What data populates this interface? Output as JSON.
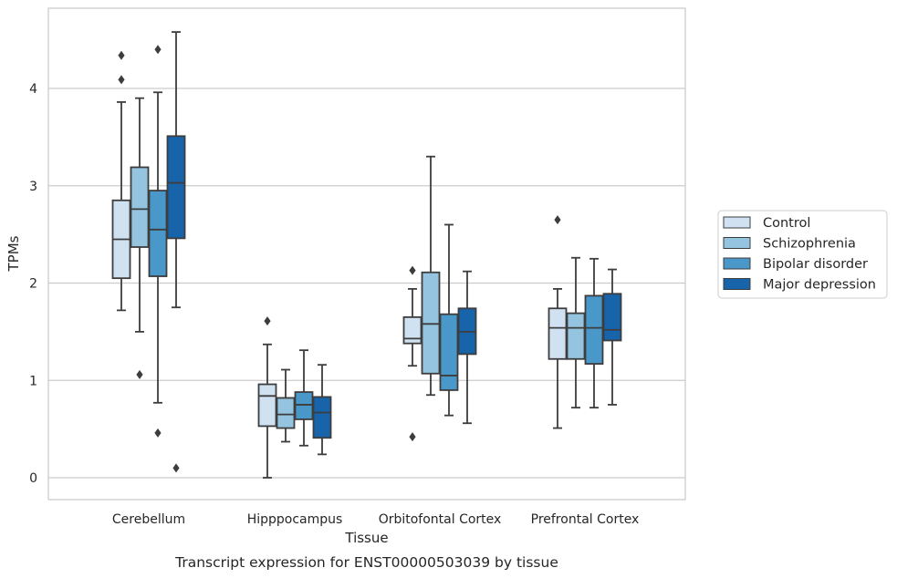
{
  "chart_data": {
    "type": "box",
    "caption": "Transcript expression for ENST00000503039 by tissue",
    "xlabel": "Tissue",
    "ylabel": "TPMs",
    "ylim": [
      -0.22,
      4.83
    ],
    "yticks": [
      0,
      1,
      2,
      3,
      4
    ],
    "grid": "horizontal",
    "legend_position": "right",
    "categories": [
      "Cerebellum",
      "Hipppocampus",
      "Orbitofontal Cortex",
      "Prefrontal Cortex"
    ],
    "series": [
      {
        "name": "Control",
        "color": "#d0e1f2",
        "boxes": [
          {
            "whislo": 1.72,
            "q1": 2.05,
            "med": 2.45,
            "q3": 2.85,
            "whishi": 3.86,
            "fliers": [
              4.09,
              4.34
            ]
          },
          {
            "whislo": 0.0,
            "q1": 0.53,
            "med": 0.84,
            "q3": 0.96,
            "whishi": 1.37,
            "fliers": [
              1.61
            ]
          },
          {
            "whislo": 1.15,
            "q1": 1.38,
            "med": 1.43,
            "q3": 1.65,
            "whishi": 1.94,
            "fliers": [
              2.13,
              0.42
            ]
          },
          {
            "whislo": 0.51,
            "q1": 1.22,
            "med": 1.54,
            "q3": 1.74,
            "whishi": 1.94,
            "fliers": [
              2.65
            ]
          }
        ]
      },
      {
        "name": "Schizophrenia",
        "color": "#94c4df",
        "boxes": [
          {
            "whislo": 1.5,
            "q1": 2.37,
            "med": 2.76,
            "q3": 3.19,
            "whishi": 3.9,
            "fliers": [
              1.06
            ]
          },
          {
            "whislo": 0.37,
            "q1": 0.51,
            "med": 0.65,
            "q3": 0.82,
            "whishi": 1.11,
            "fliers": []
          },
          {
            "whislo": 0.85,
            "q1": 1.07,
            "med": 1.58,
            "q3": 2.11,
            "whishi": 3.3,
            "fliers": []
          },
          {
            "whislo": 0.72,
            "q1": 1.22,
            "med": 1.54,
            "q3": 1.69,
            "whishi": 2.26,
            "fliers": []
          }
        ]
      },
      {
        "name": "Bipolar disorder",
        "color": "#4a98c9",
        "boxes": [
          {
            "whislo": 0.77,
            "q1": 2.07,
            "med": 2.55,
            "q3": 2.95,
            "whishi": 3.96,
            "fliers": [
              4.4,
              0.46
            ]
          },
          {
            "whislo": 0.33,
            "q1": 0.6,
            "med": 0.75,
            "q3": 0.88,
            "whishi": 1.31,
            "fliers": []
          },
          {
            "whislo": 0.64,
            "q1": 0.9,
            "med": 1.05,
            "q3": 1.68,
            "whishi": 2.6,
            "fliers": []
          },
          {
            "whislo": 0.72,
            "q1": 1.17,
            "med": 1.54,
            "q3": 1.87,
            "whishi": 2.25,
            "fliers": []
          }
        ]
      },
      {
        "name": "Major depression",
        "color": "#1764ab",
        "boxes": [
          {
            "whislo": 1.75,
            "q1": 2.46,
            "med": 3.03,
            "q3": 3.51,
            "whishi": 4.58,
            "fliers": [
              0.1
            ]
          },
          {
            "whislo": 0.24,
            "q1": 0.41,
            "med": 0.67,
            "q3": 0.83,
            "whishi": 1.16,
            "fliers": []
          },
          {
            "whislo": 0.56,
            "q1": 1.27,
            "med": 1.5,
            "q3": 1.74,
            "whishi": 2.12,
            "fliers": []
          },
          {
            "whislo": 0.75,
            "q1": 1.41,
            "med": 1.52,
            "q3": 1.89,
            "whishi": 2.14,
            "fliers": []
          }
        ]
      }
    ]
  }
}
